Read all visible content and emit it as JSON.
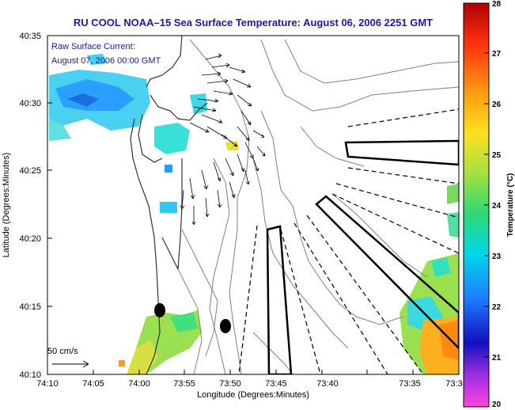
{
  "title": "RU COOL  NOAA–15  Sea Surface Temperature:  August 06, 2006 2251 GMT",
  "annotation": {
    "line1": "Raw Surface Current:",
    "line2": "August 07, 2006 00:00 GMT"
  },
  "scale_bar_label": "50 cm/s",
  "x_axis": {
    "label": "Longitude (Degrees:Minutes)",
    "ticks": [
      "74:10",
      "74:05",
      "74:00",
      "73:55",
      "73:50",
      "73:45",
      "73:40",
      "73:35",
      "73:3"
    ]
  },
  "y_axis": {
    "label": "Latitude (Degrees:Minutes)",
    "ticks": [
      "40:35",
      "40:30",
      "40:25",
      "40:20",
      "40:15",
      "40:10"
    ]
  },
  "colorbar": {
    "title": "Temperature (°C)",
    "ticks": [
      "28",
      "27",
      "26",
      "25",
      "24",
      "23",
      "22",
      "21",
      "20"
    ],
    "range": [
      20,
      28
    ],
    "colors": [
      "#ff44dd",
      "#8a2be2",
      "#1010c0",
      "#1e7fff",
      "#00d8e8",
      "#30d870",
      "#a8e040",
      "#ffe020",
      "#ff9a10",
      "#ff3010",
      "#b00000"
    ]
  },
  "colors": {
    "title": "#1a1aa0",
    "land": "#ffffff",
    "contour": "#808080",
    "vectors": "#000000"
  },
  "icons": [
    "current-vector-arrows",
    "buoy-marker"
  ]
}
